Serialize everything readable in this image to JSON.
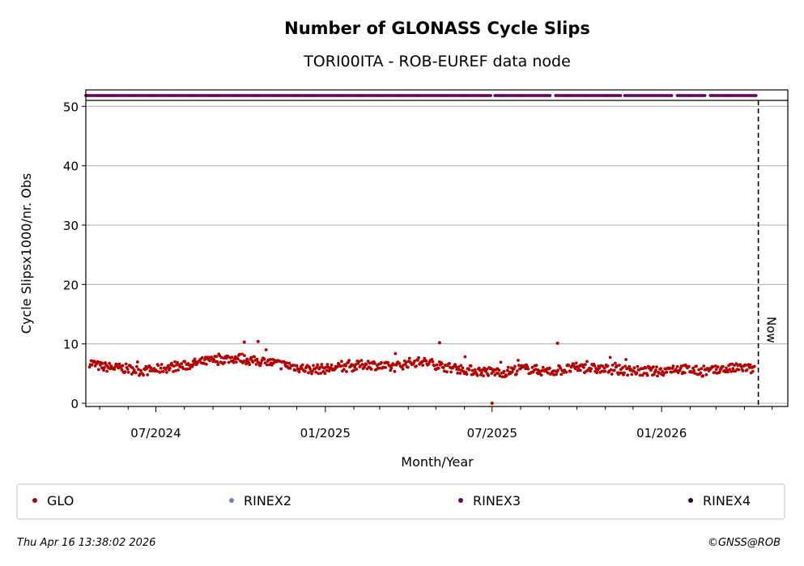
{
  "chart_data": {
    "type": "scatter",
    "title": "Number of GLONASS Cycle Slips",
    "subtitle": "TORI00ITA - ROB-EUREF data node",
    "xlabel": "Month/Year",
    "ylabel": "Cycle Slipsx1000/nr. Obs",
    "x_ticks": [
      "07/2024",
      "01/2025",
      "07/2025",
      "01/2026"
    ],
    "y_ticks": [
      0,
      10,
      20,
      30,
      40,
      50
    ],
    "ylim": [
      0,
      51
    ],
    "xlim": [
      "2024-04-16",
      "2026-05-18"
    ],
    "grid": "horizontal",
    "now_label": "Now",
    "now_date": "2026-04-16",
    "legend_placement": "bottom",
    "legend": [
      {
        "name": "GLO",
        "color": "#b30000"
      },
      {
        "name": "RINEX2",
        "color": "#7b7fbf"
      },
      {
        "name": "RINEX3",
        "color": "#5e0a5e"
      },
      {
        "name": "RINEX4",
        "color": "#2b0a2b"
      }
    ],
    "series": [
      {
        "name": "GLO",
        "color": "#b30000",
        "x": [
          "2024-04-20",
          "2024-05-01",
          "2024-05-15",
          "2024-06-01",
          "2024-06-15",
          "2024-07-01",
          "2024-07-15",
          "2024-08-01",
          "2024-08-15",
          "2024-09-01",
          "2024-09-15",
          "2024-10-01",
          "2024-10-15",
          "2024-11-01",
          "2024-11-15",
          "2024-12-01",
          "2024-12-15",
          "2025-01-01",
          "2025-01-15",
          "2025-02-01",
          "2025-02-15",
          "2025-03-01",
          "2025-03-15",
          "2025-04-01",
          "2025-04-15",
          "2025-05-01",
          "2025-05-15",
          "2025-06-01",
          "2025-06-15",
          "2025-07-01",
          "2025-07-15",
          "2025-08-01",
          "2025-08-15",
          "2025-09-01",
          "2025-09-15",
          "2025-10-01",
          "2025-10-15",
          "2025-11-01",
          "2025-11-15",
          "2025-12-01",
          "2025-12-15",
          "2026-01-01",
          "2026-01-15",
          "2026-02-01",
          "2026-02-15",
          "2026-03-01",
          "2026-03-15",
          "2026-04-01",
          "2026-04-12"
        ],
        "y": [
          6.9,
          6.2,
          6.0,
          5.8,
          5.4,
          5.7,
          6.0,
          6.3,
          6.8,
          7.2,
          7.5,
          7.6,
          7.1,
          6.9,
          6.5,
          6.1,
          5.7,
          5.8,
          6.0,
          6.2,
          6.6,
          6.3,
          6.0,
          6.8,
          7.0,
          6.5,
          6.0,
          5.7,
          5.4,
          5.3,
          5.2,
          5.8,
          5.7,
          5.3,
          5.6,
          6.0,
          5.9,
          5.7,
          5.6,
          5.5,
          5.3,
          5.4,
          5.9,
          5.6,
          5.3,
          5.5,
          5.8,
          6.0,
          5.6
        ],
        "outliers": {
          "x": [
            "2024-10-05",
            "2024-10-20",
            "2025-05-05",
            "2025-07-01",
            "2025-09-10",
            "2025-08-20"
          ],
          "y": [
            10.3,
            10.4,
            10.2,
            0.0,
            10.1,
            5.0
          ]
        }
      },
      {
        "name": "RINEX3",
        "color": "#5e0a5e",
        "x_start": "2024-04-16",
        "x_end": "2026-04-14",
        "y": 51,
        "gaps": [
          "2025-07-02",
          "2025-09-05",
          "2025-11-20",
          "2026-01-15",
          "2026-02-20"
        ]
      }
    ]
  },
  "footer": {
    "timestamp": "Thu Apr 16 13:38:02 2026",
    "copyright": "©GNSS@ROB"
  }
}
